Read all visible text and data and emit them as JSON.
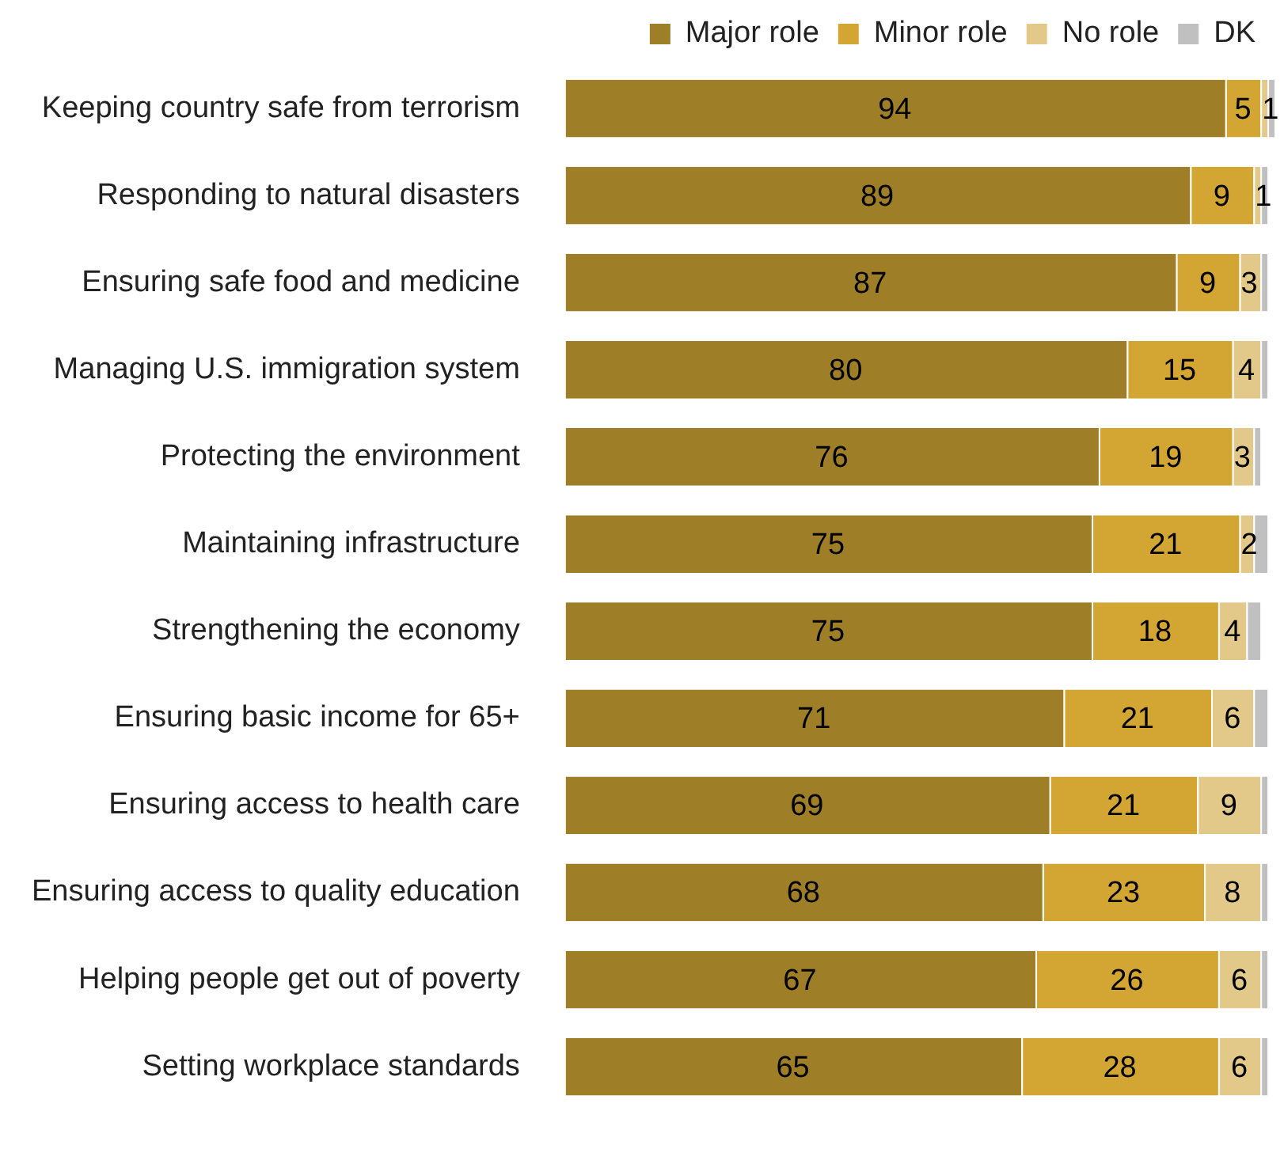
{
  "chart_data": {
    "type": "bar",
    "orientation": "horizontal",
    "stacked": true,
    "legend": "top right",
    "categories": [
      "Keeping country safe from terrorism",
      "Responding to natural disasters",
      "Ensuring safe food and medicine",
      "Managing U.S. immigration system",
      "Protecting the environment",
      "Maintaining infrastructure",
      "Strengthening the economy",
      "Ensuring basic income for 65+",
      "Ensuring access to health care",
      "Ensuring access to quality education",
      "Helping people get out of poverty",
      "Setting workplace standards"
    ],
    "series": [
      {
        "name": "Major role",
        "color": "#9e7e26",
        "values": [
          94,
          89,
          87,
          80,
          76,
          75,
          75,
          71,
          69,
          68,
          67,
          65
        ],
        "value_labels": [
          "94",
          "89",
          "87",
          "80",
          "76",
          "75",
          "75",
          "71",
          "69",
          "68",
          "67",
          "65"
        ]
      },
      {
        "name": "Minor role",
        "color": "#d3a633",
        "values": [
          5,
          9,
          9,
          15,
          19,
          21,
          18,
          21,
          21,
          23,
          26,
          28
        ],
        "value_labels": [
          "5",
          "9",
          "9",
          "15",
          "19",
          "21",
          "18",
          "21",
          "21",
          "23",
          "26",
          "28"
        ]
      },
      {
        "name": "No role",
        "color": "#e2c98a",
        "values": [
          1,
          1,
          3,
          4,
          3,
          2,
          4,
          6,
          9,
          8,
          6,
          6
        ],
        "value_labels": [
          "1",
          "1",
          "3",
          "4",
          "3",
          "2",
          "4",
          "6",
          "9",
          "8",
          "6",
          "6"
        ]
      },
      {
        "name": "DK",
        "color": "#c0c0c0",
        "values": [
          1,
          1,
          1,
          1,
          1,
          2,
          2,
          2,
          1,
          1,
          1,
          1
        ]
      }
    ]
  }
}
